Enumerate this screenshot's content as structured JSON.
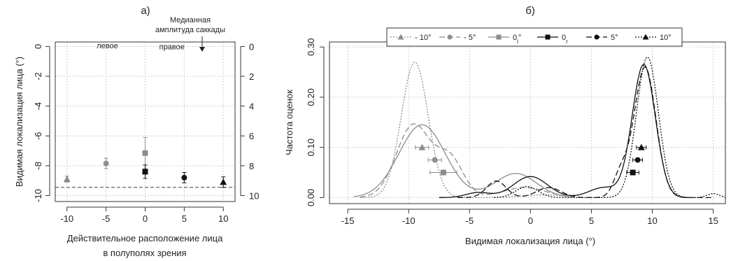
{
  "chart_data": [
    {
      "type": "scatter",
      "panel_label": "а)",
      "xlabel_lines": [
        "Действительное расположение лица",
        "в полуполях зрения"
      ],
      "ylabel": "Видимая локализация лица (°)",
      "xlim": [
        -11.5,
        11.5
      ],
      "ylim": [
        -10.4,
        0.3
      ],
      "x_ticks": [
        -10,
        -5,
        0,
        5,
        10
      ],
      "x_tick_labels": [
        "-10",
        "-5",
        "0",
        "5",
        "10"
      ],
      "y_ticks_left": [
        0,
        -2,
        -4,
        -6,
        -8,
        -10
      ],
      "y_tick_labels_left": [
        "0",
        "-2",
        "-4",
        "-6",
        "-8",
        "-10"
      ],
      "y_ticks_right": [
        0,
        -2,
        -4,
        -6,
        -8,
        -10
      ],
      "y_tick_labels_right": [
        "0",
        "2",
        "4",
        "6",
        "8",
        "10"
      ],
      "grid": true,
      "reference_line": {
        "y": -9.45,
        "style": "dashed"
      },
      "annotation_lines": [
        "Медианная",
        "амплитуда саккады"
      ],
      "region_labels": [
        {
          "text": "левое",
          "x": -6.2,
          "y": -0.12
        },
        {
          "text": "правое",
          "x": 1.8,
          "y": -0.2
        }
      ],
      "series": [
        {
          "x": -10,
          "y": -8.9,
          "err": 0.2,
          "marker": "triangle",
          "color": "#8c8c8c"
        },
        {
          "x": -5,
          "y": -7.85,
          "err": 0.35,
          "marker": "circle",
          "color": "#8c8c8c"
        },
        {
          "x": 0,
          "y": -7.15,
          "err": 1.05,
          "marker": "square",
          "color": "#8c8c8c"
        },
        {
          "x": 0,
          "y": -8.4,
          "err": 0.45,
          "marker": "square",
          "color": "#111111"
        },
        {
          "x": 5,
          "y": -8.8,
          "err": 0.35,
          "marker": "circle",
          "color": "#111111"
        },
        {
          "x": 10,
          "y": -9.1,
          "err": 0.35,
          "marker": "triangle",
          "color": "#111111"
        }
      ]
    },
    {
      "type": "line",
      "panel_label": "б)",
      "xlabel": "Видимая локализация лица (°)",
      "ylabel": "Частота оценок",
      "xlim": [
        -16.5,
        16
      ],
      "ylim": [
        -0.012,
        0.31
      ],
      "x_ticks": [
        -15,
        -10,
        -5,
        0,
        5,
        10,
        15
      ],
      "x_tick_labels": [
        "-15",
        "-10",
        "-5",
        "0",
        "5",
        "10",
        "15"
      ],
      "y_ticks": [
        0,
        0.1,
        0.2,
        0.3
      ],
      "y_tick_labels": [
        "0.00",
        "0.10",
        "0.20",
        "0.30"
      ],
      "grid": true,
      "legend_position": "top",
      "legend": [
        {
          "label": "- 10°",
          "marker": "triangle",
          "color": "#8c8c8c",
          "dash": "2 2"
        },
        {
          "label": "- 5°",
          "marker": "circle",
          "color": "#8c8c8c",
          "dash": "8 4"
        },
        {
          "label": "0",
          "sub": "l",
          "suffix": "°",
          "marker": "square",
          "color": "#8c8c8c",
          "dash": ""
        },
        {
          "label": "0",
          "sub": "r",
          "suffix": "",
          "marker": "square",
          "color": "#111111",
          "dash": ""
        },
        {
          "label": "5°",
          "marker": "circle",
          "color": "#111111",
          "dash": "8 4"
        },
        {
          "label": "10°",
          "marker": "triangle",
          "color": "#111111",
          "dash": "2 2"
        }
      ],
      "series": [
        {
          "name": "- 10°",
          "color": "#8c8c8c",
          "dash": "2 2",
          "range": [
            -14,
            3
          ],
          "components": [
            [
              0.27,
              -9.5,
              1.1
            ],
            [
              0.004,
              0,
              1.2
            ],
            [
              0.004,
              2,
              1
            ]
          ]
        },
        {
          "name": "- 5°",
          "color": "#8c8c8c",
          "dash": "8 4",
          "range": [
            -14,
            3
          ],
          "components": [
            [
              0.145,
              -9.6,
              1.4
            ],
            [
              0.075,
              -6.6,
              1.1
            ],
            [
              0.02,
              -0.5,
              1.8
            ]
          ]
        },
        {
          "name": "0l°",
          "color": "#8c8c8c",
          "dash": "",
          "range": [
            -14.5,
            3.5
          ],
          "components": [
            [
              0.145,
              -8.9,
              1.9
            ],
            [
              0.048,
              -1.2,
              1.7
            ]
          ]
        },
        {
          "name": "0r",
          "color": "#111111",
          "dash": "",
          "range": [
            -7.5,
            13
          ],
          "components": [
            [
              0.01,
              -4.3,
              1
            ],
            [
              0.042,
              0,
              1.4
            ],
            [
              0.02,
              6,
              1.2
            ],
            [
              0.265,
              9.3,
              0.95
            ]
          ]
        },
        {
          "name": "5°",
          "color": "#111111",
          "dash": "8 4",
          "range": [
            -6,
            15
          ],
          "components": [
            [
              0.033,
              -2.8,
              0.8
            ],
            [
              0.02,
              1.5,
              1
            ],
            [
              0.045,
              7.4,
              0.6
            ],
            [
              0.26,
              9.4,
              0.9
            ]
          ]
        },
        {
          "name": "10°",
          "color": "#111111",
          "dash": "2 2",
          "range": [
            -3,
            16
          ],
          "components": [
            [
              0.022,
              -0.3,
              0.9
            ],
            [
              0.28,
              9.6,
              0.9
            ],
            [
              0.008,
              15,
              0.5
            ]
          ]
        }
      ],
      "means": [
        {
          "x": -8.9,
          "y": 0.1,
          "err": 0.55,
          "marker": "triangle",
          "color": "#8c8c8c"
        },
        {
          "x": -7.85,
          "y": 0.075,
          "err": 0.55,
          "marker": "circle",
          "color": "#8c8c8c"
        },
        {
          "x": -7.15,
          "y": 0.05,
          "err": 1.1,
          "marker": "square",
          "color": "#8c8c8c"
        },
        {
          "x": 8.4,
          "y": 0.05,
          "err": 0.5,
          "marker": "square",
          "color": "#111111"
        },
        {
          "x": 8.8,
          "y": 0.075,
          "err": 0.4,
          "marker": "circle",
          "color": "#111111"
        },
        {
          "x": 9.1,
          "y": 0.1,
          "err": 0.4,
          "marker": "triangle",
          "color": "#111111"
        }
      ]
    }
  ]
}
